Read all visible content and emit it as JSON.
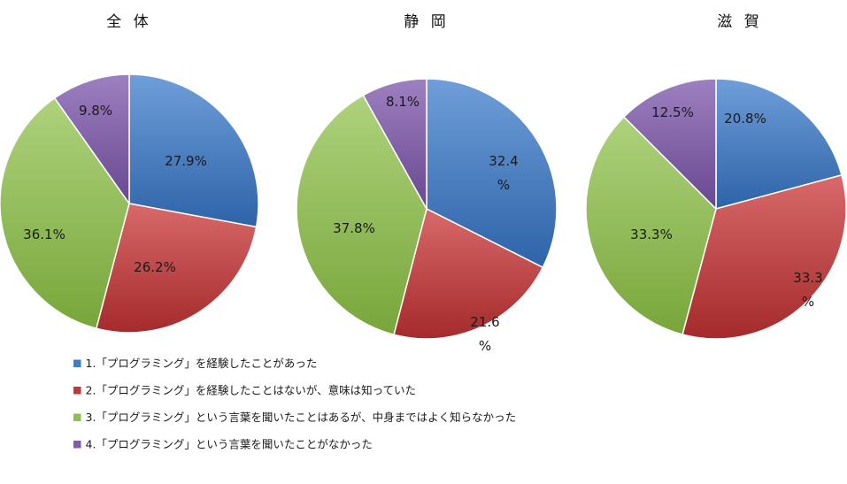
{
  "chart_data": [
    {
      "type": "pie",
      "title": "全 体",
      "categories": [
        "1",
        "2",
        "3",
        "4"
      ],
      "values": [
        27.9,
        26.2,
        36.1,
        9.8
      ],
      "labels": [
        "27.9%",
        "26.2%",
        "36.1%",
        "9.8%"
      ]
    },
    {
      "type": "pie",
      "title": "静 岡",
      "categories": [
        "1",
        "2",
        "3",
        "4"
      ],
      "values": [
        32.4,
        21.6,
        37.8,
        8.1
      ],
      "labels": [
        "32.4\n%",
        "21.6\n%",
        "37.8%",
        "8.1%"
      ]
    },
    {
      "type": "pie",
      "title": "滋 賀",
      "categories": [
        "1",
        "2",
        "3",
        "4"
      ],
      "values": [
        20.8,
        33.3,
        33.3,
        12.5
      ],
      "labels": [
        "20.8%",
        "33.3\n%",
        "33.3%",
        "12.5%"
      ]
    }
  ],
  "legend": {
    "placement": "bottom-left",
    "items": [
      {
        "label": "1.「プログラミング」を経験したことがあった",
        "color": "#3f7cc6"
      },
      {
        "label": "2.「プログラミング」を経験したことはないが、意味は知っていた",
        "color": "#c0393a"
      },
      {
        "label": "3.「プログラミング」という言葉を聞いたことはあるが、中身まではよく知らなかった",
        "color": "#92c050"
      },
      {
        "label": "4.「プログラミング」という言葉を聞いたことがなかった",
        "color": "#7f5ca6"
      }
    ]
  },
  "series_colors": {
    "1": {
      "base": "#3f7cc6",
      "light": "#6f9ed9",
      "dark": "#2d63a8"
    },
    "2": {
      "base": "#c0393a",
      "light": "#d8696a",
      "dark": "#a52a2b"
    },
    "3": {
      "base": "#92c050",
      "light": "#aed27c",
      "dark": "#78a63a"
    },
    "4": {
      "base": "#7f5ca6",
      "light": "#9d80c0",
      "dark": "#684890"
    }
  }
}
